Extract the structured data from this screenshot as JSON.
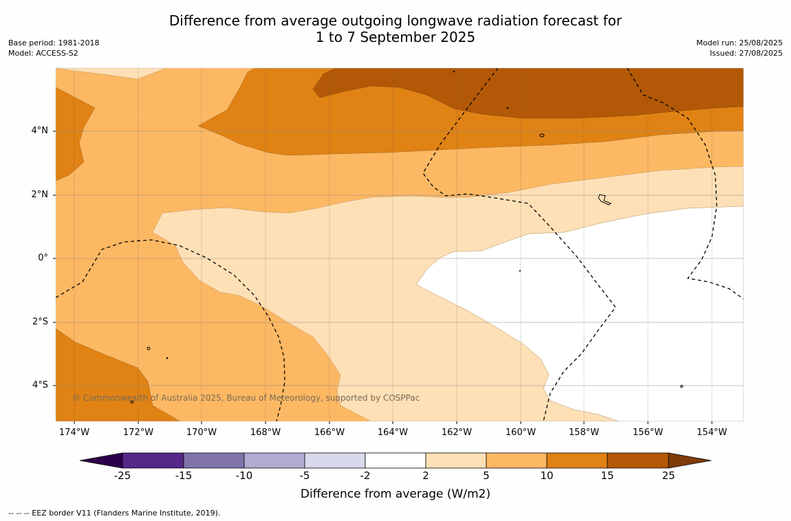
{
  "header": {
    "title_line1": "Difference from average outgoing longwave radiation forecast for",
    "title_line2": "1 to 7 September 2025",
    "base_period": "Base period: 1981-2018",
    "model": "Model: ACCESS-S2",
    "model_run": "Model run: 25/08/2025",
    "issued": "Issued: 27/08/2025"
  },
  "map": {
    "copyright": "© Commonwealth of Australia 2025, Bureau of Meteorology, supported by COSPPac",
    "lat_labels": [
      "4°N",
      "2°N",
      "0°",
      "2°S",
      "4°S"
    ],
    "lon_labels": [
      "174°W",
      "172°W",
      "170°W",
      "168°W",
      "166°W",
      "164°W",
      "162°W",
      "160°W",
      "158°W",
      "156°W",
      "154°W"
    ],
    "colors": {
      "lt_neg25": "#2d004b",
      "neg25_neg15": "#542788",
      "neg15_neg10": "#8073ac",
      "neg10_neg5": "#b2abd2",
      "neg5_neg2": "#d8daeb",
      "neg2_2": "#ffffff",
      "2_5": "#fee0b6",
      "5_10": "#fdb863",
      "10_15": "#e08214",
      "15_25": "#b35806",
      "gt_25": "#7f3b08"
    }
  },
  "colorbar": {
    "title": "Difference from average (W/m2)",
    "ticks": [
      "-25",
      "-15",
      "-10",
      "-5",
      "-2",
      "2",
      "5",
      "10",
      "15",
      "25"
    ],
    "segment_colors": [
      "#542788",
      "#8073ac",
      "#b2abd2",
      "#d8daeb",
      "#ffffff",
      "#fee0b6",
      "#fdb863",
      "#e08214",
      "#b35806"
    ],
    "low_extend_color": "#2d004b",
    "high_extend_color": "#7f3b08"
  },
  "footer": {
    "eez_note": "--  --  -- EEZ border V11 (Flanders Marine Institute, 2019)."
  }
}
